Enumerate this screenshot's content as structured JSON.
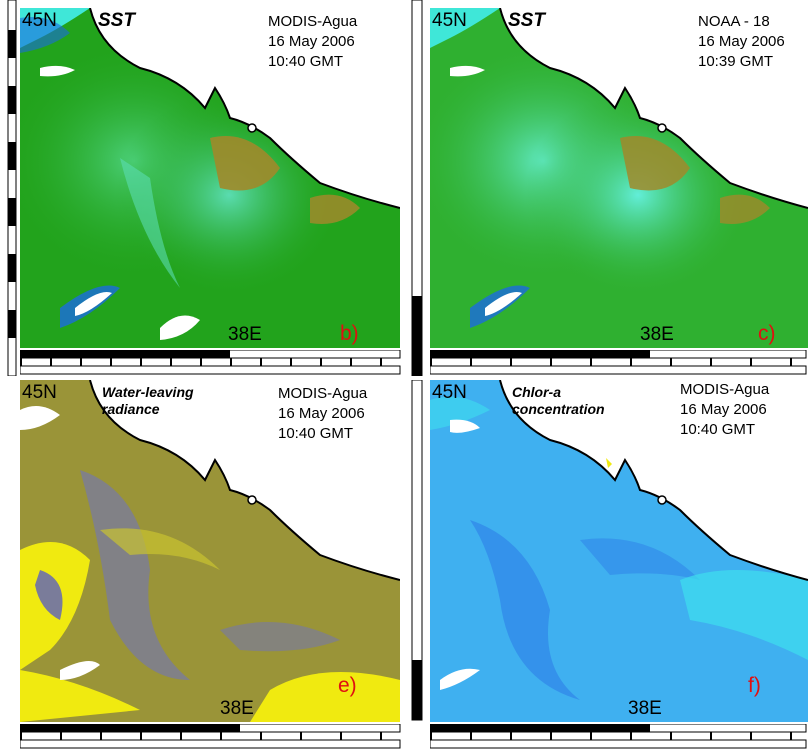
{
  "panels": [
    {
      "lat_label": "45N",
      "title": "SST",
      "sensor": "MODIS-Agua",
      "date": "16 May 2006",
      "time": "10:40 GMT",
      "lon_label": "38E",
      "tag": "b)",
      "palette": "sst"
    },
    {
      "lat_label": "45N",
      "title": "SST",
      "sensor": "NOAA - 18",
      "date": "16 May 2006",
      "time": "10:39 GMT",
      "lon_label": "38E",
      "tag": "c)",
      "palette": "sst2"
    },
    {
      "lat_label": "45N",
      "title_line1": "Water-leaving",
      "title_line2": "radiance",
      "sensor": "MODIS-Agua",
      "date": "16 May 2006",
      "time": "10:40 GMT",
      "lon_label": "38E",
      "tag": "e)",
      "palette": "radiance"
    },
    {
      "lat_label": "45N",
      "title_line1": "Chlor-a",
      "title_line2": "concentration",
      "sensor": "MODIS-Agua",
      "date": "16 May 2006",
      "time": "10:40 GMT",
      "lon_label": "38E",
      "tag": "f)",
      "palette": "chlor"
    }
  ],
  "colors": {
    "sst_base": "#22a31c",
    "sst_warm": "#a08a2a",
    "sst_cool": "#3fe7d8",
    "sst_cold": "#1b6be0",
    "rad_base": "#9a9438",
    "rad_bright": "#f0ea10",
    "rad_grey": "#7a7c9a",
    "chl_base": "#3fb0f0",
    "chl_dark": "#2d7ee8",
    "chl_light": "#3ee0ee",
    "land": "#ffffff",
    "tag": "#e01010"
  }
}
